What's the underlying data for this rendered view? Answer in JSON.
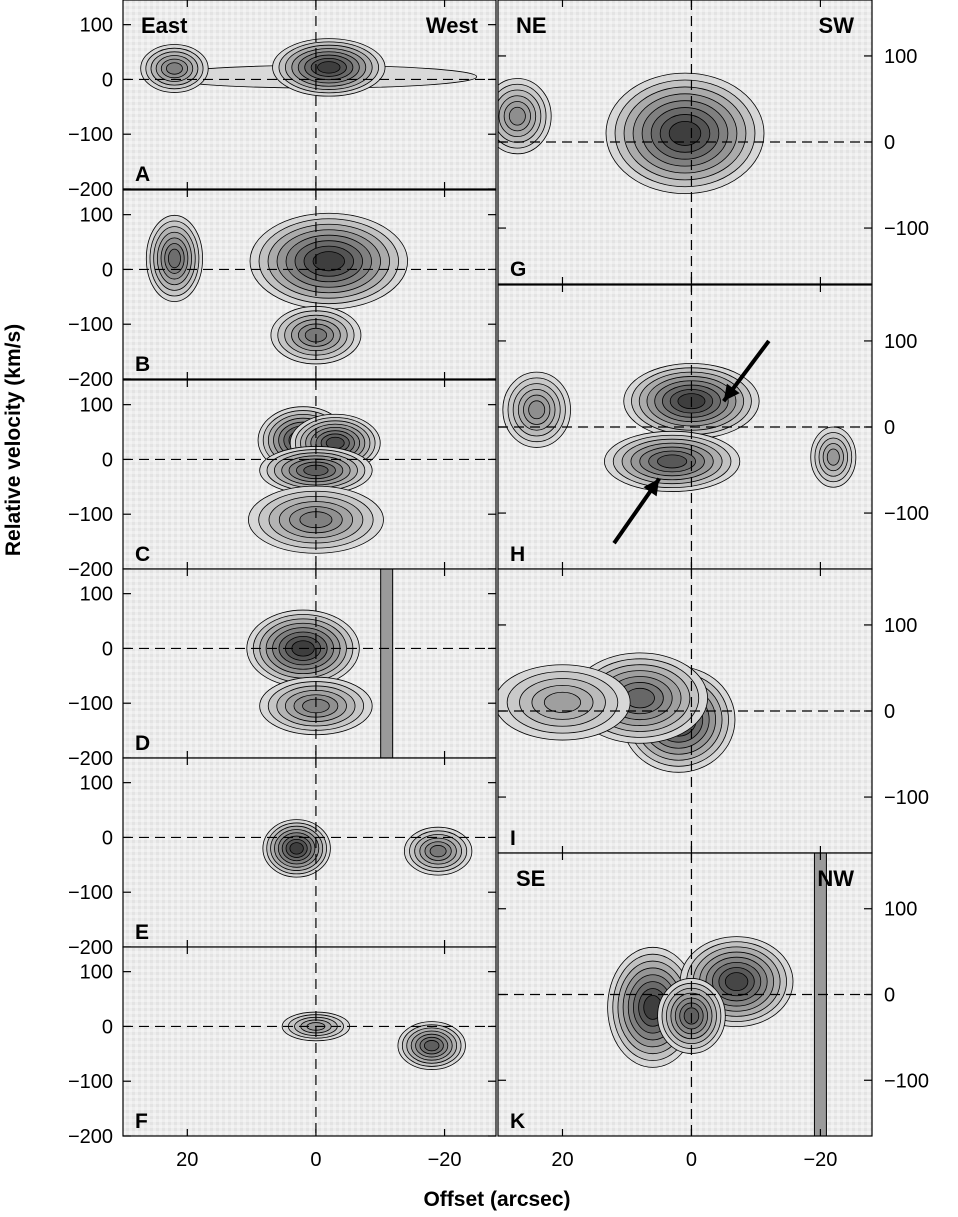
{
  "figure": {
    "ylabel": "Relative velocity (km/s)",
    "xlabel": "Offset (arcsec)"
  },
  "chart_data": [
    {
      "type": "heatmap",
      "panel": "A",
      "column": "left",
      "x_axis": {
        "range": [
          30,
          -28
        ],
        "ticks": [
          20,
          0,
          -20
        ]
      },
      "y_axis": {
        "range": [
          -200,
          145
        ],
        "ticks": [
          100,
          0,
          -100,
          -200
        ]
      },
      "corner_labels": {
        "left": "East",
        "right": "West"
      },
      "emission_peaks": [
        {
          "offset": 22,
          "velocity": 20,
          "width": 3,
          "height": 25,
          "strength": 0.6
        },
        {
          "offset": -2,
          "velocity": 22,
          "width": 5,
          "height": 30,
          "strength": 1.0
        }
      ],
      "extended_emission": {
        "offset_range": [
          24,
          -25
        ],
        "velocity": 5
      },
      "crosshair": {
        "offset": 0,
        "velocity": 0
      }
    },
    {
      "type": "heatmap",
      "panel": "B",
      "column": "left",
      "x_axis": {
        "range": [
          30,
          -28
        ],
        "ticks": [
          20,
          0,
          -20
        ]
      },
      "y_axis": {
        "range": [
          -200,
          145
        ],
        "ticks": [
          100,
          0,
          -100,
          -200
        ]
      },
      "emission_peaks": [
        {
          "offset": 22,
          "velocity": 20,
          "width": 2.5,
          "height": 45,
          "strength": 0.7
        },
        {
          "offset": -2,
          "velocity": 15,
          "width": 7,
          "height": 50,
          "strength": 1.0
        },
        {
          "offset": 0,
          "velocity": -120,
          "width": 4,
          "height": 30,
          "strength": 0.65
        }
      ],
      "crosshair": {
        "offset": 0,
        "velocity": 0
      }
    },
    {
      "type": "heatmap",
      "panel": "C",
      "column": "left",
      "x_axis": {
        "range": [
          30,
          -28
        ],
        "ticks": [
          20,
          0,
          -20
        ]
      },
      "y_axis": {
        "range": [
          -200,
          145
        ],
        "ticks": [
          100,
          0,
          -100,
          -200
        ]
      },
      "emission_peaks": [
        {
          "offset": 2,
          "velocity": 35,
          "width": 4,
          "height": 35,
          "strength": 1.0
        },
        {
          "offset": -3,
          "velocity": 30,
          "width": 4,
          "height": 30,
          "strength": 0.9
        },
        {
          "offset": 0,
          "velocity": -20,
          "width": 5,
          "height": 25,
          "strength": 0.8
        },
        {
          "offset": 0,
          "velocity": -110,
          "width": 6,
          "height": 35,
          "strength": 0.6
        }
      ],
      "crosshair": {
        "offset": 0,
        "velocity": 0
      }
    },
    {
      "type": "heatmap",
      "panel": "D",
      "column": "left",
      "x_axis": {
        "range": [
          30,
          -28
        ],
        "ticks": [
          20,
          0,
          -20
        ]
      },
      "y_axis": {
        "range": [
          -200,
          145
        ],
        "ticks": [
          100,
          0,
          -100,
          -200
        ]
      },
      "emission_peaks": [
        {
          "offset": 2,
          "velocity": 0,
          "width": 5,
          "height": 40,
          "strength": 1.0
        },
        {
          "offset": 0,
          "velocity": -105,
          "width": 5,
          "height": 30,
          "strength": 0.6
        }
      ],
      "vertical_stripe": {
        "offset": -11
      },
      "crosshair": {
        "offset": 0,
        "velocity": 0
      }
    },
    {
      "type": "heatmap",
      "panel": "E",
      "column": "left",
      "x_axis": {
        "range": [
          30,
          -28
        ],
        "ticks": [
          20,
          0,
          -20
        ]
      },
      "y_axis": {
        "range": [
          -200,
          145
        ],
        "ticks": [
          100,
          0,
          -100,
          -200
        ]
      },
      "emission_peaks": [
        {
          "offset": 3,
          "velocity": -20,
          "width": 3,
          "height": 30,
          "strength": 1.0
        },
        {
          "offset": -19,
          "velocity": -25,
          "width": 3,
          "height": 25,
          "strength": 0.65
        }
      ],
      "crosshair": {
        "offset": 0,
        "velocity": 0
      }
    },
    {
      "type": "heatmap",
      "panel": "F",
      "column": "left",
      "x_axis": {
        "range": [
          30,
          -28
        ],
        "ticks": [
          20,
          0,
          -20
        ]
      },
      "y_axis": {
        "range": [
          -200,
          145
        ],
        "ticks": [
          100,
          0,
          -100,
          -200
        ]
      },
      "emission_peaks": [
        {
          "offset": 0,
          "velocity": 0,
          "width": 3,
          "height": 15,
          "strength": 0.45
        },
        {
          "offset": -18,
          "velocity": -35,
          "width": 3,
          "height": 25,
          "strength": 0.8
        }
      ],
      "crosshair": {
        "offset": 0,
        "velocity": 0
      }
    },
    {
      "type": "heatmap",
      "panel": "G",
      "column": "right",
      "x_axis": {
        "range": [
          30,
          -28
        ],
        "ticks": [
          20,
          0,
          -20
        ]
      },
      "y_axis": {
        "range": [
          -165,
          165
        ],
        "ticks": [
          100,
          0,
          -100
        ]
      },
      "corner_labels": {
        "left": "NE",
        "right": "SW"
      },
      "emission_peaks": [
        {
          "offset": 1,
          "velocity": 10,
          "width": 7,
          "height": 40,
          "strength": 1.0
        },
        {
          "offset": 27,
          "velocity": 30,
          "width": 3,
          "height": 25,
          "strength": 0.5
        }
      ],
      "crosshair": {
        "offset": 0,
        "velocity": 0
      }
    },
    {
      "type": "heatmap",
      "panel": "H",
      "column": "right",
      "x_axis": {
        "range": [
          30,
          -28
        ],
        "ticks": [
          20,
          0,
          -20
        ]
      },
      "y_axis": {
        "range": [
          -165,
          165
        ],
        "ticks": [
          100,
          0,
          -100
        ]
      },
      "emission_peaks": [
        {
          "offset": 0,
          "velocity": 30,
          "width": 6,
          "height": 25,
          "strength": 1.0
        },
        {
          "offset": 3,
          "velocity": -40,
          "width": 6,
          "height": 20,
          "strength": 0.85
        },
        {
          "offset": 24,
          "velocity": 20,
          "width": 3,
          "height": 25,
          "strength": 0.5
        },
        {
          "offset": -22,
          "velocity": -35,
          "width": 2,
          "height": 20,
          "strength": 0.45
        }
      ],
      "arrows": [
        {
          "from": [
            -12,
            100
          ],
          "to": [
            -5,
            30
          ]
        },
        {
          "from": [
            12,
            -135
          ],
          "to": [
            5,
            -60
          ]
        }
      ],
      "crosshair": {
        "offset": 0,
        "velocity": 0
      }
    },
    {
      "type": "heatmap",
      "panel": "I",
      "column": "right",
      "x_axis": {
        "range": [
          30,
          -28
        ],
        "ticks": [
          20,
          0,
          -20
        ]
      },
      "y_axis": {
        "range": [
          -165,
          165
        ],
        "ticks": [
          100,
          0,
          -100
        ]
      },
      "emission_peaks": [
        {
          "offset": 2,
          "velocity": -10,
          "width": 5,
          "height": 35,
          "strength": 1.0
        },
        {
          "offset": 8,
          "velocity": 15,
          "width": 6,
          "height": 30,
          "strength": 0.75
        },
        {
          "offset": 20,
          "velocity": 10,
          "width": 6,
          "height": 25,
          "strength": 0.4
        }
      ],
      "crosshair": {
        "offset": 0,
        "velocity": 0
      }
    },
    {
      "type": "heatmap",
      "panel": "K",
      "column": "right",
      "x_axis": {
        "range": [
          30,
          -28
        ],
        "ticks": [
          20,
          0,
          -20
        ]
      },
      "y_axis": {
        "range": [
          -165,
          165
        ],
        "ticks": [
          100,
          0,
          -100
        ]
      },
      "corner_labels": {
        "left": "SE",
        "right": "NW"
      },
      "emission_peaks": [
        {
          "offset": 6,
          "velocity": -15,
          "width": 4,
          "height": 40,
          "strength": 1.0
        },
        {
          "offset": -7,
          "velocity": 15,
          "width": 5,
          "height": 30,
          "strength": 0.95
        },
        {
          "offset": 0,
          "velocity": -25,
          "width": 3,
          "height": 25,
          "strength": 0.8
        }
      ],
      "vertical_stripe": {
        "offset": -20
      },
      "crosshair": {
        "offset": 0,
        "velocity": 0
      }
    }
  ]
}
